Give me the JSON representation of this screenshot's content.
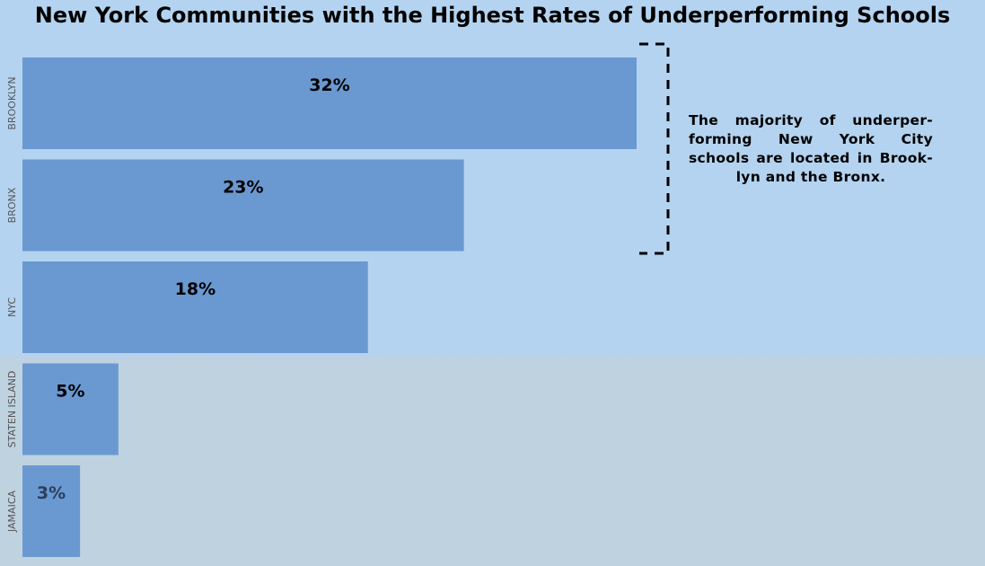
{
  "chart_data": {
    "type": "bar",
    "orientation": "horizontal",
    "title": "New York Communities with the Highest Rates of Underperforming Schools",
    "categories": [
      "BROOKLYN",
      "BRONX",
      "NYC",
      "STATEN ISLAND",
      "JAMAICA"
    ],
    "values": [
      32,
      23,
      18,
      5,
      3
    ],
    "value_labels": [
      "32%",
      "23%",
      "18%",
      "5%",
      "3%"
    ],
    "unit": "%",
    "xlim": [
      0,
      32
    ],
    "grid": false,
    "legend": "none",
    "bar_color": "#6a99d1",
    "annotation": "The majority of underper-forming New York City schools are located in Brook-lyn and the Bronx."
  }
}
